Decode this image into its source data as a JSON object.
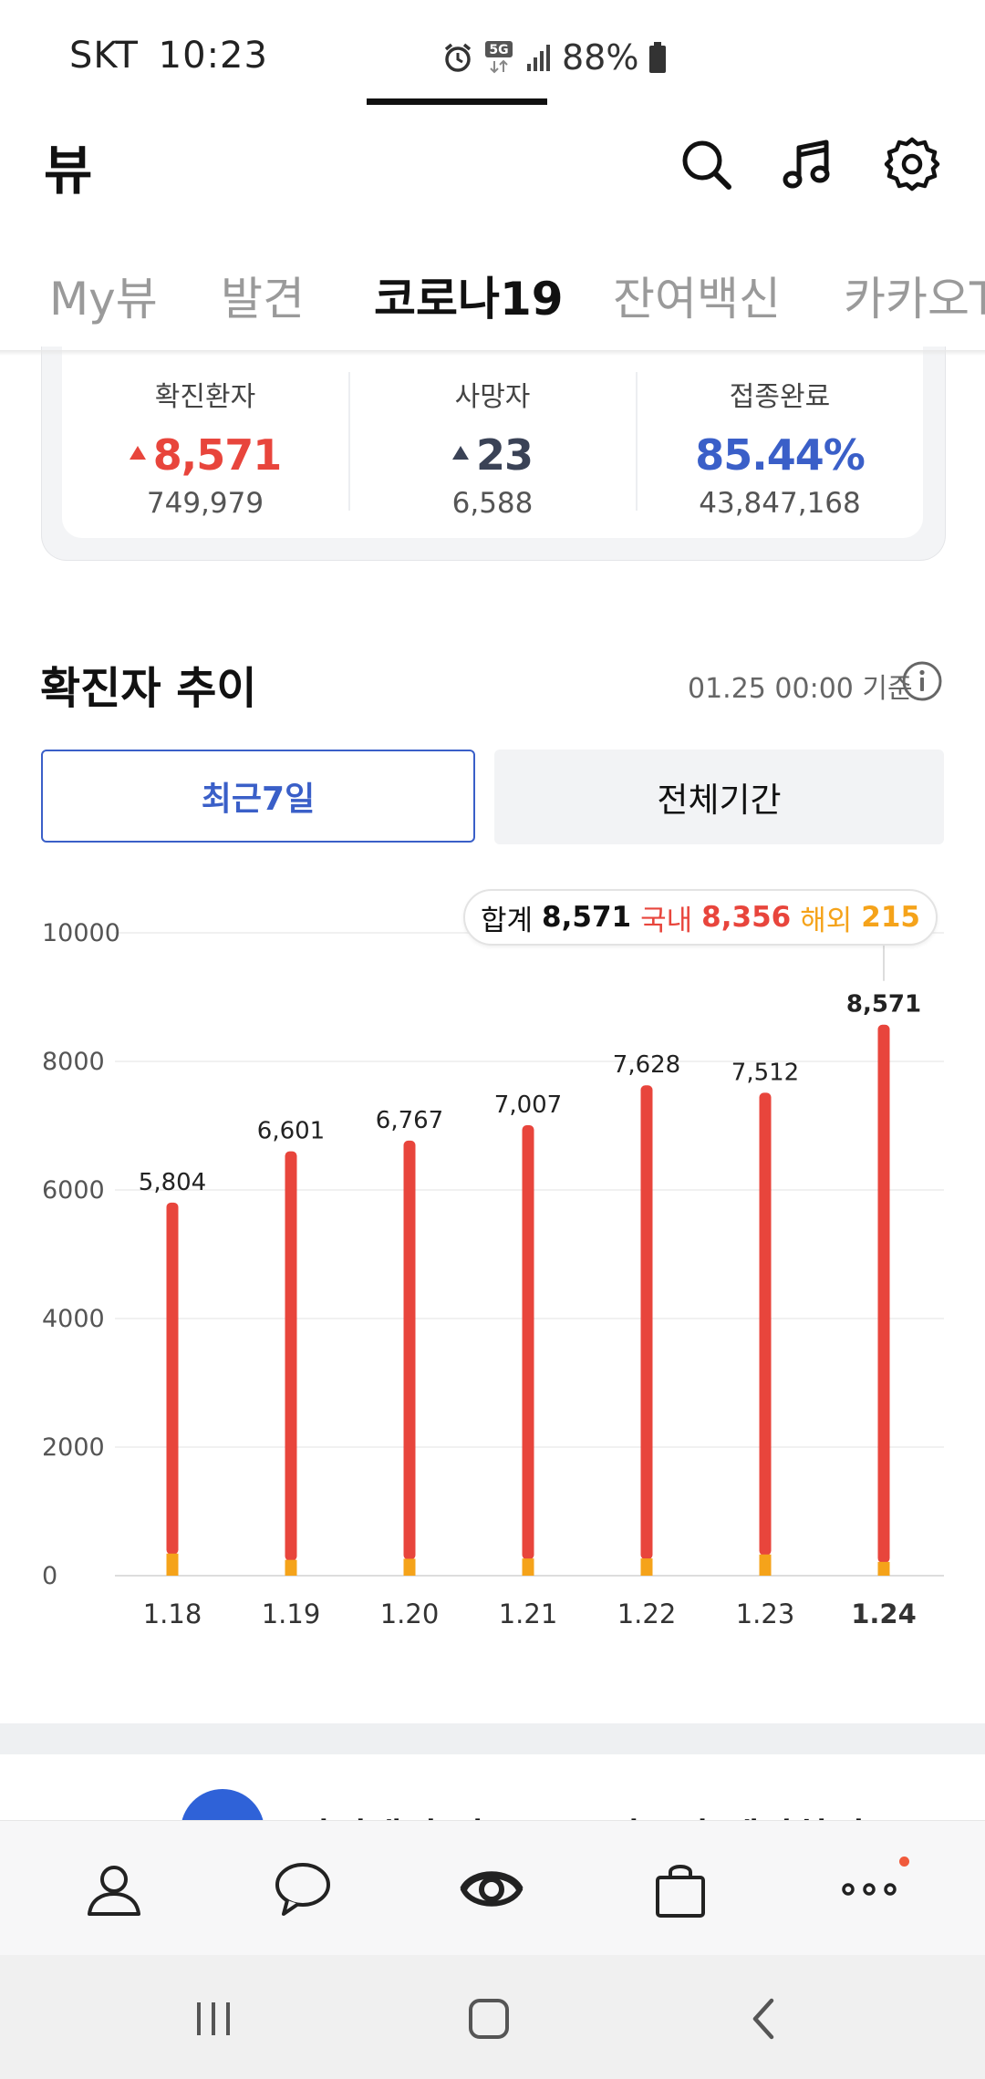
{
  "status_bar": {
    "carrier": "SKT",
    "time": "10:23",
    "network": "5G",
    "battery": "88%"
  },
  "header": {
    "title": "뷰",
    "icons": [
      "search-icon",
      "music-note-icon",
      "settings-gear-icon"
    ]
  },
  "tabs": [
    {
      "label": "My뷰",
      "active": false
    },
    {
      "label": "발견",
      "active": false
    },
    {
      "label": "코로나19",
      "active": true
    },
    {
      "label": "잔여백신",
      "active": false
    },
    {
      "label": "카카오T",
      "active": false
    }
  ],
  "stats": {
    "confirmed": {
      "label": "확진환자",
      "today": "8,571",
      "total": "749,979",
      "color": "#e8453c"
    },
    "deaths": {
      "label": "사망자",
      "today": "23",
      "total": "6,588",
      "color": "#3a4256"
    },
    "vaccinated": {
      "label": "접종완료",
      "rate": "85.44%",
      "total": "43,847,168",
      "color": "#3a5fc8"
    }
  },
  "section": {
    "title": "확진자 추이",
    "basis": "01.25 00:00 기준"
  },
  "period_buttons": {
    "recent": "최근7일",
    "all": "전체기간",
    "selected": "recent"
  },
  "tooltip": {
    "sum_label": "합계",
    "sum_value": "8,571",
    "domestic_label": "국내",
    "domestic_value": "8,356",
    "overseas_label": "해외",
    "overseas_value": "215"
  },
  "chart_data": {
    "type": "bar",
    "stacked": true,
    "categories": [
      "1.18",
      "1.19",
      "1.20",
      "1.21",
      "1.22",
      "1.23",
      "1.24"
    ],
    "totals": [
      5804,
      6601,
      6767,
      7007,
      7628,
      7512,
      8571
    ],
    "total_labels": [
      "5,804",
      "6,601",
      "6,767",
      "7,007",
      "7,628",
      "7,512",
      "8,571"
    ],
    "series": [
      {
        "name": "국내",
        "color": "#e8453c",
        "values": [
          5460,
          6355,
          6504,
          6740,
          7360,
          7182,
          8356
        ]
      },
      {
        "name": "해외",
        "color": "#f5a31a",
        "values": [
          344,
          246,
          263,
          267,
          268,
          330,
          215
        ]
      }
    ],
    "y_ticks": [
      "10000",
      "8000",
      "6000",
      "4000",
      "2000",
      "0"
    ],
    "ylim": [
      0,
      10000
    ],
    "highlight_index": 6
  },
  "promo": {
    "text": "잔여백신 자동으로 신보과 예약하기"
  },
  "bottom_nav": [
    "person-icon",
    "chat-bubble-icon",
    "view-eye-icon",
    "shopping-bag-icon",
    "more-dots-icon"
  ],
  "system_nav": [
    "recent-apps-icon",
    "home-icon",
    "back-icon"
  ]
}
